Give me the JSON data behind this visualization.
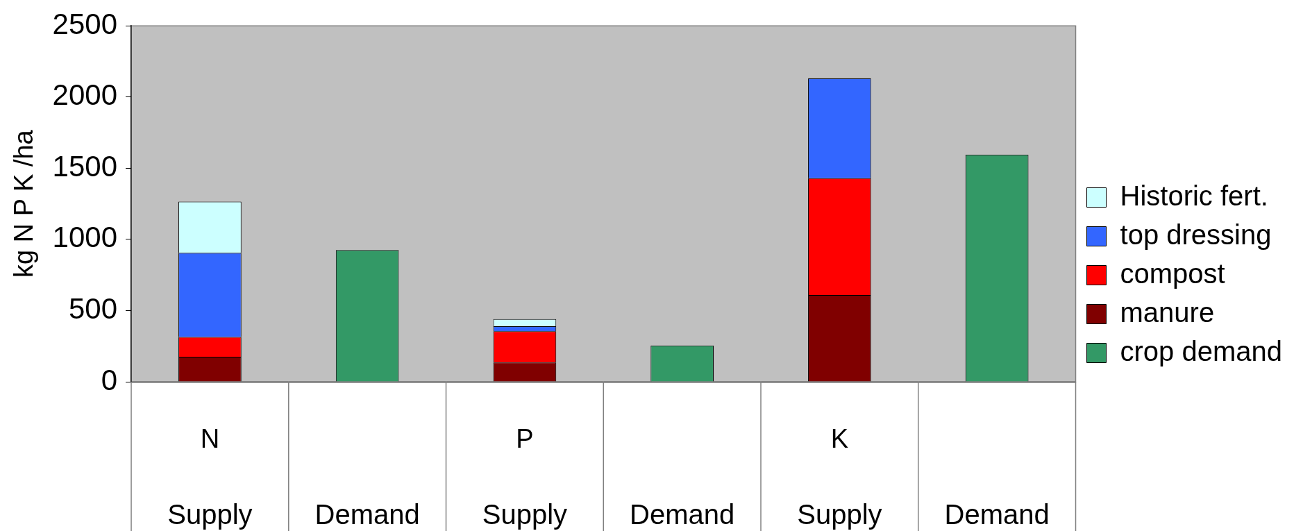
{
  "chart_data": {
    "type": "bar",
    "ylabel": "kg N P K /ha",
    "categories": [
      "Supply",
      "Demand",
      "Supply",
      "Demand",
      "Supply",
      "Demand"
    ],
    "annotations": [
      "N",
      "P",
      "K"
    ],
    "stacked": true,
    "series": [
      {
        "name": "crop demand",
        "color": "#339966",
        "values": [
          null,
          925,
          null,
          255,
          null,
          1595
        ]
      },
      {
        "name": "manure",
        "color": "#800000",
        "values": [
          175,
          null,
          135,
          null,
          610,
          null
        ]
      },
      {
        "name": "compost",
        "color": "#ff0000",
        "values": [
          140,
          null,
          220,
          null,
          820,
          null
        ]
      },
      {
        "name": "top dressing",
        "color": "#3366ff",
        "values": [
          590,
          null,
          35,
          null,
          700,
          null
        ]
      },
      {
        "name": "Historic fert.",
        "color": "#ccffff",
        "values": [
          360,
          null,
          50,
          null,
          null,
          null
        ]
      }
    ],
    "ylim": [
      0,
      2500
    ],
    "yticks": [
      0,
      500,
      1000,
      1500,
      2000,
      2500
    ],
    "grid": false,
    "legend": "right"
  }
}
